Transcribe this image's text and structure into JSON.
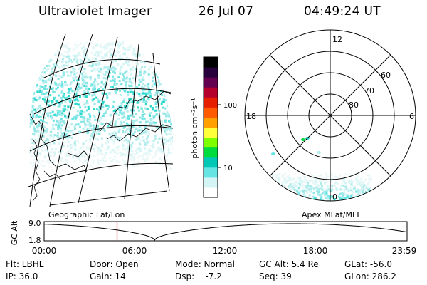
{
  "header": {
    "instrument": "Ultraviolet Imager",
    "date": "26 Jul 07",
    "time": "04:49:24 UT"
  },
  "left_map": {
    "label": "Geographic Lat/Lon"
  },
  "right_map": {
    "label": "Apex MLat/MLT",
    "mlt_labels": {
      "top": "12",
      "left": "18",
      "right": "6",
      "bottom": "0"
    },
    "lat_labels": [
      "60",
      "70",
      "80"
    ]
  },
  "colorbar": {
    "unit_label": "photon cm⁻²s⁻¹",
    "ticks": [
      {
        "label": "100",
        "value": 100
      },
      {
        "label": "10",
        "value": 10
      }
    ],
    "colors": [
      "#ffffff",
      "#d4f5f5",
      "#66e4e4",
      "#00c8b4",
      "#00dc3c",
      "#7dff00",
      "#ffff3c",
      "#ffa000",
      "#ff5a00",
      "#e61e00",
      "#b4002d",
      "#640050",
      "#28003c",
      "#000000"
    ]
  },
  "altitude_plot": {
    "ylabel": "GC Alt",
    "y_ticks": [
      "9.0",
      "1.8"
    ],
    "x_ticks": [
      "00:00",
      "06:00",
      "12:00",
      "18:00",
      "23:59"
    ],
    "current_time_hours": 4.82
  },
  "info": {
    "filter": "Flt: LBHL",
    "ip": "IP: 36.0",
    "door": "Door: Open",
    "gain": "Gain: 14",
    "mode": "Mode: Normal",
    "dsp": "Dsp:    -7.2",
    "gc_alt": "GC Alt: 5.4 Re",
    "seq": "Seq: 39",
    "glat": "GLat: -56.0",
    "glon": "GLon: 286.2"
  }
}
